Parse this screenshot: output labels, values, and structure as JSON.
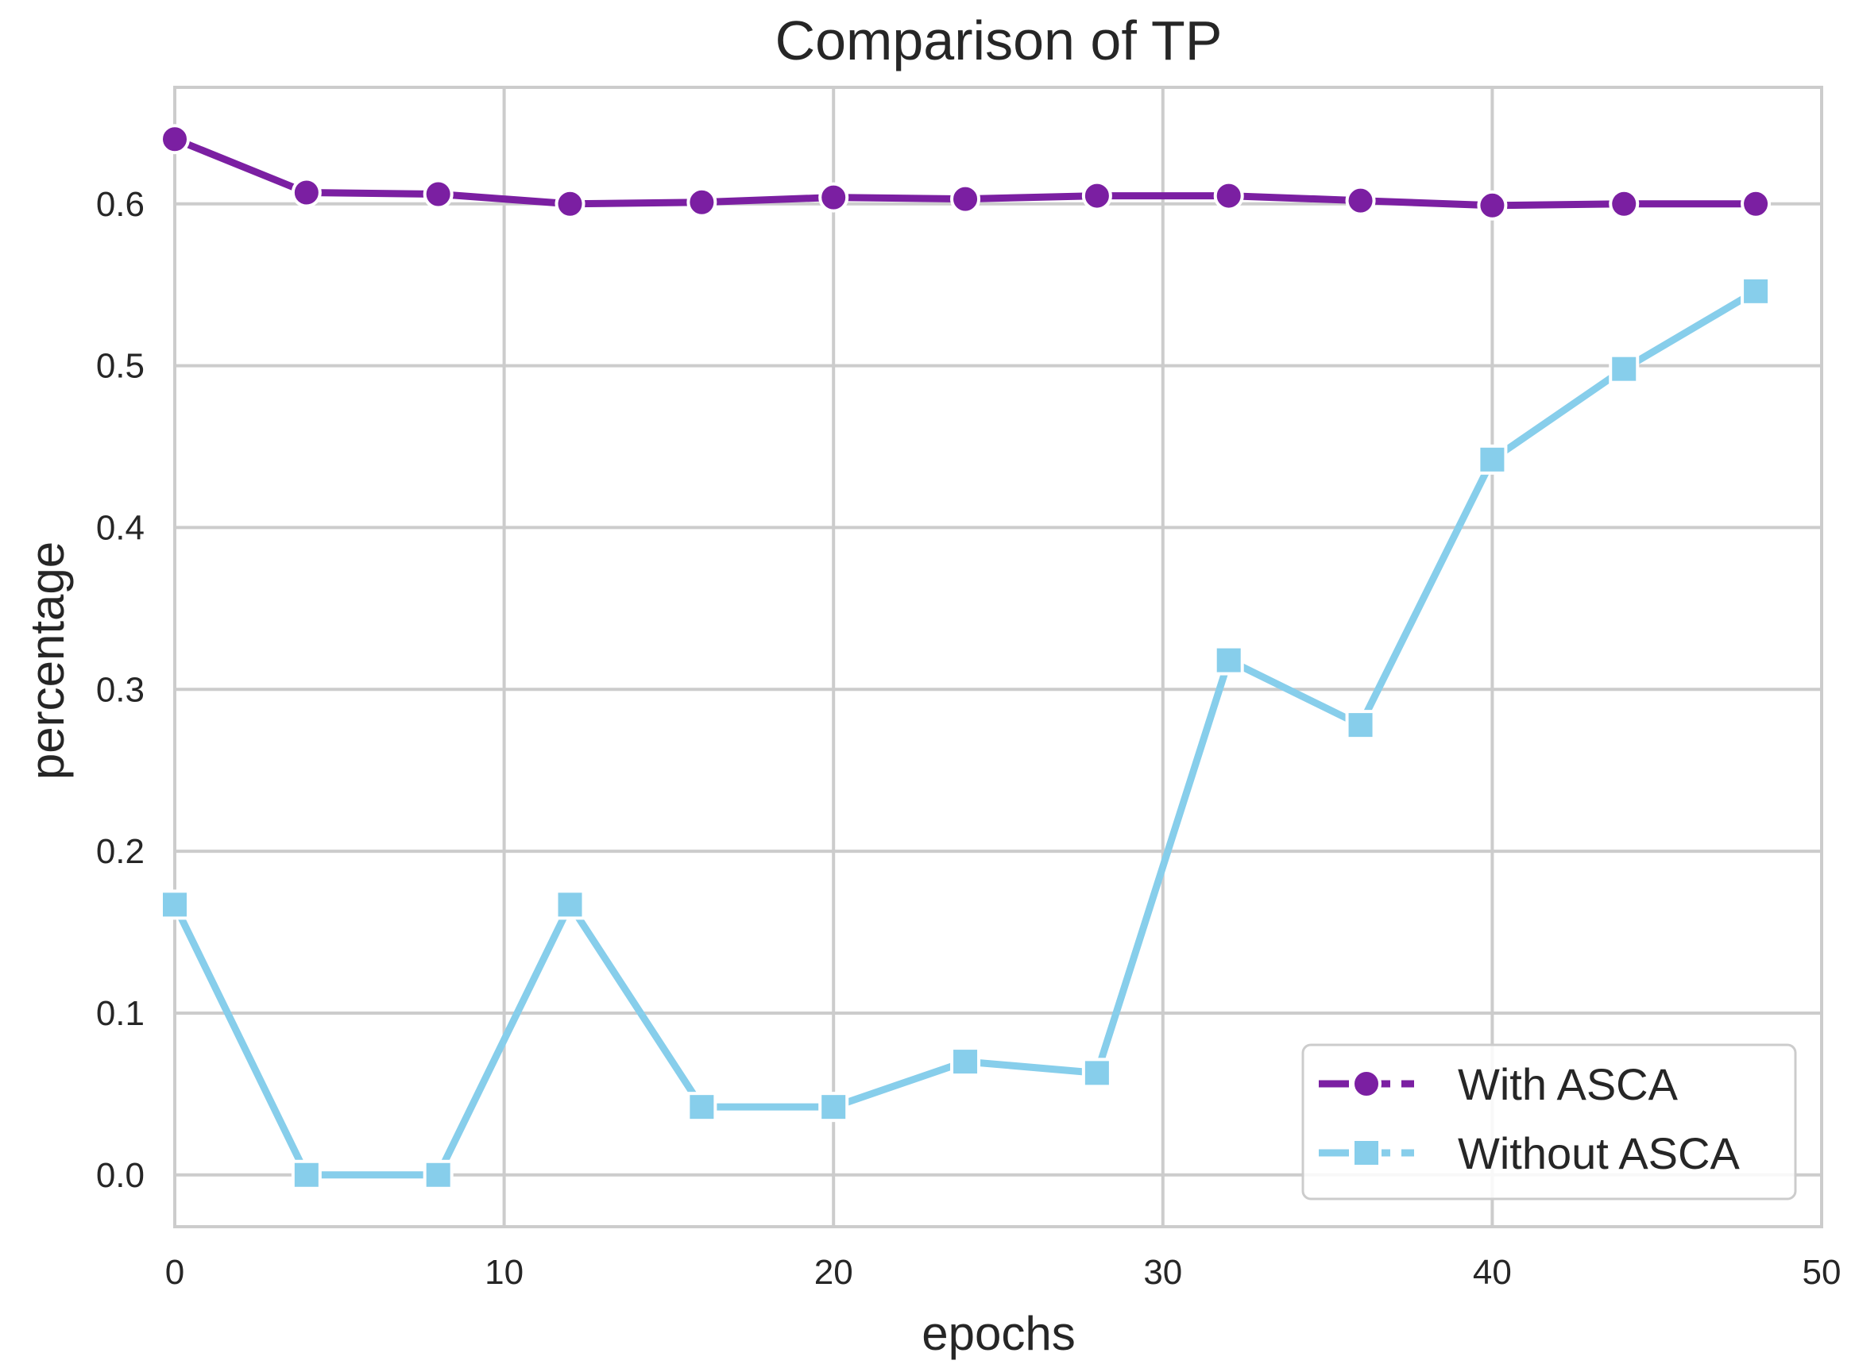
{
  "chart_data": {
    "type": "line",
    "title": "Comparison of TP",
    "xlabel": "epochs",
    "ylabel": "percentage",
    "xlim": [
      0,
      50
    ],
    "ylim": [
      -0.032,
      0.672
    ],
    "x_ticks": [
      0,
      10,
      20,
      30,
      40,
      50
    ],
    "y_ticks": [
      0.0,
      0.1,
      0.2,
      0.3,
      0.4,
      0.5,
      0.6
    ],
    "x_tick_labels": [
      "0",
      "10",
      "20",
      "30",
      "40",
      "50"
    ],
    "y_tick_labels": [
      "0.0",
      "0.1",
      "0.2",
      "0.3",
      "0.4",
      "0.5",
      "0.6"
    ],
    "grid": true,
    "legend_position": "lower-right",
    "x": [
      0,
      4,
      8,
      12,
      16,
      20,
      24,
      28,
      32,
      36,
      40,
      44,
      48
    ],
    "series": [
      {
        "name": "With ASCA",
        "color": "#7B1FA2",
        "marker": "circle",
        "values": [
          0.64,
          0.607,
          0.606,
          0.6,
          0.601,
          0.604,
          0.603,
          0.605,
          0.605,
          0.602,
          0.599,
          0.6,
          0.6
        ]
      },
      {
        "name": "Without ASCA",
        "color": "#87CEEB",
        "marker": "square",
        "values": [
          0.167,
          0.0,
          0.0,
          0.167,
          0.042,
          0.042,
          0.07,
          0.063,
          0.318,
          0.278,
          0.442,
          0.498,
          0.546
        ]
      }
    ]
  }
}
